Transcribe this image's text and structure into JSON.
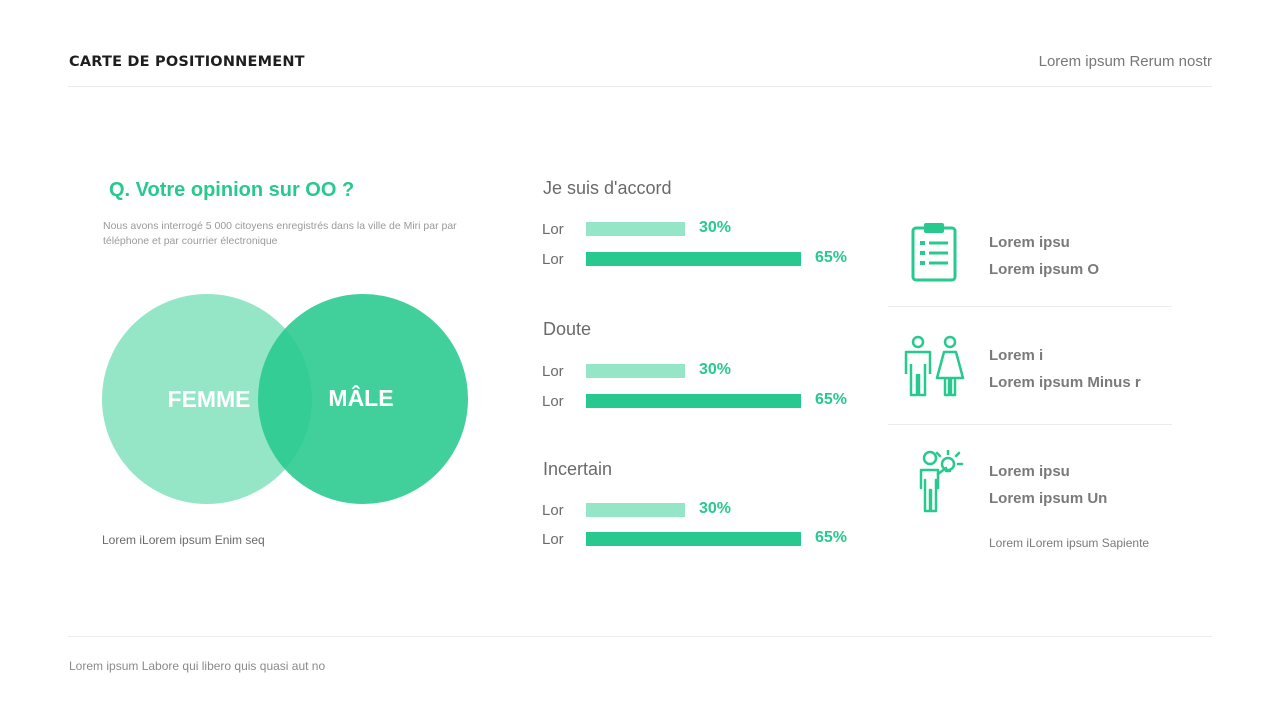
{
  "header": {
    "title": "CARTE DE POSITIONNEMENT",
    "right_text": "Lorem ipsum Rerum nostr"
  },
  "footer": {
    "text": "Lorem ipsum Labore qui libero quis quasi aut no"
  },
  "survey": {
    "question": "Q. Votre opinion sur OO ?",
    "intro": "Nous avons interrogé 5 000 citoyens enregistrés dans la ville de Miri par par téléphone et par courrier électronique"
  },
  "venn": {
    "left_label": "FEMME",
    "right_label": "MÂLE",
    "caption": "Lorem iLorem ipsum Enim seq",
    "left_color": "#94e6c6",
    "right_color": "#3ad096"
  },
  "groups": [
    {
      "title": "Je suis d'accord",
      "bars": [
        {
          "label": "Lor",
          "value": 30,
          "value_text": "30%",
          "style": "light"
        },
        {
          "label": "Lor",
          "value": 65,
          "value_text": "65%",
          "style": "dark"
        }
      ]
    },
    {
      "title": "Doute",
      "bars": [
        {
          "label": "Lor",
          "value": 30,
          "value_text": "30%",
          "style": "light"
        },
        {
          "label": "Lor",
          "value": 65,
          "value_text": "65%",
          "style": "dark"
        }
      ]
    },
    {
      "title": "Incertain",
      "bars": [
        {
          "label": "Lor",
          "value": 30,
          "value_text": "30%",
          "style": "light"
        },
        {
          "label": "Lor",
          "value": 65,
          "value_text": "65%",
          "style": "dark"
        }
      ]
    }
  ],
  "info": [
    {
      "icon": "clipboard-checklist-icon",
      "line1": "Lorem ipsu",
      "line2": "Lorem ipsum O"
    },
    {
      "icon": "man-woman-icon",
      "line1": "Lorem i",
      "line2": "Lorem ipsum Minus r"
    },
    {
      "icon": "person-idea-icon",
      "line1": "Lorem ipsu",
      "line2": "Lorem ipsum Un"
    }
  ],
  "info_caption": "Lorem iLorem ipsum Sapiente",
  "colors": {
    "accent": "#27c98e",
    "accent_light": "#94e6c6",
    "rule": "#ececec"
  }
}
